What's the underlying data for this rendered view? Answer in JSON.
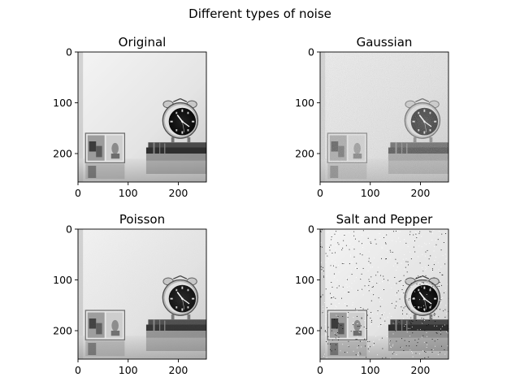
{
  "figure": {
    "title": "Different types of noise"
  },
  "chart_data": [
    {
      "type": "image",
      "title": "Original",
      "noise": "none",
      "image_size": [
        256,
        256
      ],
      "xticks": [
        0,
        100,
        200
      ],
      "yticks": [
        0,
        100,
        200
      ],
      "xlim": [
        0,
        256
      ],
      "ylim": [
        256,
        0
      ],
      "colormap": "gray"
    },
    {
      "type": "image",
      "title": "Gaussian",
      "noise": "gaussian",
      "image_size": [
        256,
        256
      ],
      "xticks": [
        0,
        100,
        200
      ],
      "yticks": [
        0,
        100,
        200
      ],
      "xlim": [
        0,
        256
      ],
      "ylim": [
        256,
        0
      ],
      "colormap": "gray"
    },
    {
      "type": "image",
      "title": "Poisson",
      "noise": "poisson",
      "image_size": [
        256,
        256
      ],
      "xticks": [
        0,
        100,
        200
      ],
      "yticks": [
        0,
        100,
        200
      ],
      "xlim": [
        0,
        256
      ],
      "ylim": [
        256,
        0
      ],
      "colormap": "gray"
    },
    {
      "type": "image",
      "title": "Salt and Pepper",
      "noise": "salt-and-pepper",
      "image_size": [
        256,
        256
      ],
      "xticks": [
        0,
        100,
        200
      ],
      "yticks": [
        0,
        100,
        200
      ],
      "xlim": [
        0,
        256
      ],
      "ylim": [
        256,
        0
      ],
      "colormap": "gray"
    }
  ]
}
